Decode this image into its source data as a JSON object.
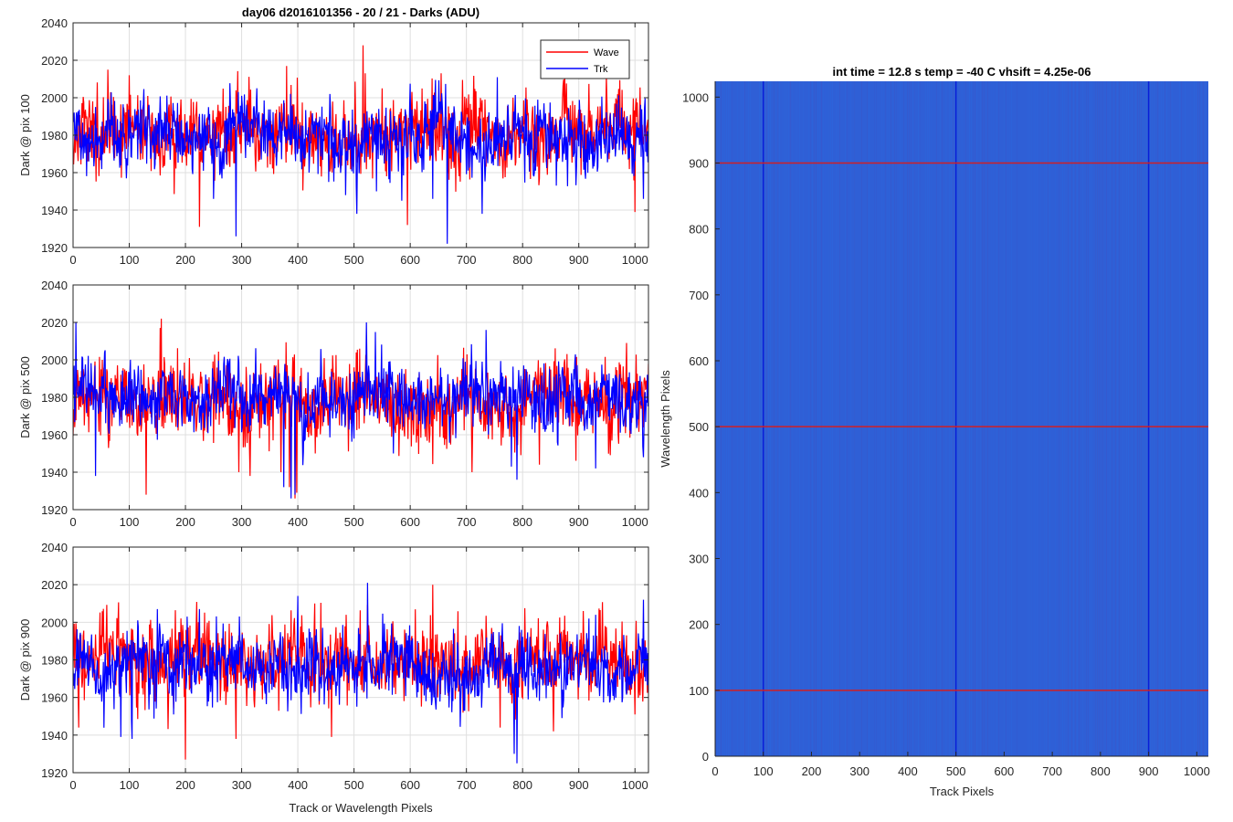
{
  "figure": {
    "title": "day06 d2016101356 - 20 / 21 - Darks (ADU)",
    "shared_xlabel": "Track or Wavelength Pixels"
  },
  "chart_data": [
    {
      "type": "line",
      "ylabel": "Dark @ pix 100",
      "xlim": [
        0,
        1024
      ],
      "ylim": [
        1920,
        2040
      ],
      "xticks": [
        0,
        100,
        200,
        300,
        400,
        500,
        600,
        700,
        800,
        900,
        1000
      ],
      "yticks": [
        1920,
        1940,
        1960,
        1980,
        2000,
        2020,
        2040
      ],
      "grid": true,
      "legend": "top-right",
      "series": [
        {
          "name": "Wave",
          "color": "#ff0000",
          "mean": 1980,
          "noise": 12,
          "extremes": [
            [
              62,
              2015
            ],
            [
              100,
              2012
            ],
            [
              225,
              1931
            ],
            [
              380,
              2017
            ],
            [
              516,
              2028
            ],
            [
              520,
              2013
            ],
            [
              595,
              1932
            ],
            [
              655,
              2013
            ],
            [
              1000,
              1939
            ]
          ]
        },
        {
          "name": "Trk",
          "color": "#0000ff",
          "mean": 1980,
          "noise": 11,
          "extremes": [
            [
              250,
              1946
            ],
            [
              290,
              1926
            ],
            [
              420,
              1960
            ],
            [
              455,
              1955
            ],
            [
              485,
              1948
            ],
            [
              505,
              1938
            ],
            [
              540,
              1950
            ],
            [
              585,
              1945
            ],
            [
              640,
              1946
            ],
            [
              666,
              1922
            ],
            [
              728,
              1938
            ],
            [
              755,
              2011
            ],
            [
              820,
              1958
            ],
            [
              838,
              1997
            ],
            [
              860,
              1953
            ],
            [
              1015,
              1946
            ]
          ]
        }
      ]
    },
    {
      "type": "line",
      "ylabel": "Dark @ pix 500",
      "xlim": [
        0,
        1024
      ],
      "ylim": [
        1920,
        2040
      ],
      "xticks": [
        0,
        100,
        200,
        300,
        400,
        500,
        600,
        700,
        800,
        900,
        1000
      ],
      "yticks": [
        1920,
        1940,
        1960,
        1980,
        2000,
        2020,
        2040
      ],
      "grid": true,
      "series": [
        {
          "name": "Wave",
          "color": "#ff0000",
          "mean": 1978,
          "noise": 13,
          "extremes": [
            [
              130,
              1928
            ],
            [
              157,
              2022
            ],
            [
              155,
              2017
            ],
            [
              295,
              1940
            ],
            [
              315,
              1938
            ],
            [
              370,
              1940
            ],
            [
              395,
              1926
            ],
            [
              385,
              1932
            ],
            [
              398,
              1929
            ],
            [
              710,
              1940
            ],
            [
              830,
              1944
            ],
            [
              985,
              2009
            ]
          ]
        },
        {
          "name": "Trk",
          "color": "#0000ff",
          "mean": 1978,
          "noise": 11,
          "extremes": [
            [
              5,
              2020
            ],
            [
              40,
              1938
            ],
            [
              375,
              1932
            ],
            [
              388,
              1926
            ],
            [
              395,
              1928
            ],
            [
              522,
              2020
            ],
            [
              570,
              1950
            ],
            [
              735,
              2016
            ],
            [
              780,
              1943
            ],
            [
              790,
              1936
            ],
            [
              930,
              1942
            ],
            [
              1015,
              1948
            ]
          ]
        }
      ]
    },
    {
      "type": "line",
      "ylabel": "Dark @ pix 900",
      "xlim": [
        0,
        1024
      ],
      "ylim": [
        1920,
        2040
      ],
      "xticks": [
        0,
        100,
        200,
        300,
        400,
        500,
        600,
        700,
        800,
        900,
        1000
      ],
      "yticks": [
        1920,
        1940,
        1960,
        1980,
        2000,
        2020,
        2040
      ],
      "grid": true,
      "series": [
        {
          "name": "Wave",
          "color": "#ff0000",
          "mean": 1978,
          "noise": 13,
          "extremes": [
            [
              10,
              1944
            ],
            [
              200,
              1927
            ],
            [
              290,
              1938
            ],
            [
              430,
              2010
            ],
            [
              460,
              1939
            ],
            [
              640,
              2020
            ],
            [
              760,
              1944
            ],
            [
              855,
              1942
            ],
            [
              908,
              2006
            ],
            [
              1000,
              1951
            ]
          ]
        },
        {
          "name": "Trk",
          "color": "#0000ff",
          "mean": 1976,
          "noise": 11,
          "extremes": [
            [
              85,
              1939
            ],
            [
              105,
              1938
            ],
            [
              150,
              2007
            ],
            [
              225,
              2007
            ],
            [
              400,
              2014
            ],
            [
              524,
              2021
            ],
            [
              785,
              1930
            ],
            [
              790,
              1925
            ],
            [
              870,
              1949
            ],
            [
              930,
              2004
            ],
            [
              1015,
              2012
            ]
          ]
        }
      ]
    },
    {
      "type": "heatmap",
      "title": "int time = 12.8 s    temp = -40 C    vhsift = 4.25e-06",
      "xlabel": "Track Pixels",
      "ylabel": "Wavelength Pixels",
      "xlim": [
        0,
        1024
      ],
      "ylim": [
        0,
        1024
      ],
      "xticks": [
        0,
        100,
        200,
        300,
        400,
        500,
        600,
        700,
        800,
        900,
        1000
      ],
      "yticks": [
        0,
        100,
        200,
        300,
        400,
        500,
        600,
        700,
        800,
        900,
        1000
      ],
      "base_color": "#2f5fd6",
      "vertical_lines": {
        "x": [
          100,
          500,
          900
        ],
        "color": "#0a1fd8"
      },
      "horizontal_lines": {
        "y": [
          100,
          500,
          900
        ],
        "color": "#d01f24"
      }
    }
  ]
}
